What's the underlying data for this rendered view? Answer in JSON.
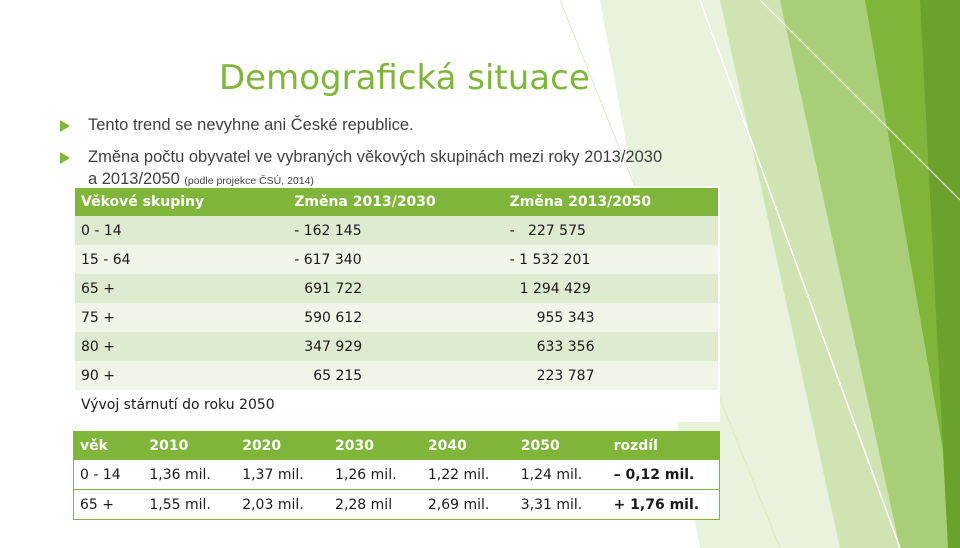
{
  "title": "Demografická situace",
  "bullets": [
    {
      "text": "Tento trend se nevyhne ani České republice."
    },
    {
      "line1": "Změna počtu obyvatel ve vybraných věkových skupinách mezi roky 2013/2030",
      "line2": "a 2013/2050",
      "note": "(podle projekce ČSÚ, 2014)"
    }
  ],
  "table1": {
    "headers": [
      "Věkové skupiny",
      "Změna 2013/2030",
      "Změna 2013/2050"
    ],
    "rows": [
      [
        "0 - 14",
        "- 162 145",
        "-   227 575"
      ],
      [
        "15 - 64",
        "- 617 340",
        "- 1 532 201"
      ],
      [
        "65 +",
        "691 722",
        "1 294 429"
      ],
      [
        "75 +",
        "590 612",
        "955 343"
      ],
      [
        "80 +",
        "347 929",
        "633 356"
      ],
      [
        "90 +",
        "65 215",
        "223 787"
      ]
    ],
    "footer": "Vývoj stárnutí do roku 2050"
  },
  "table2": {
    "headers": [
      "věk",
      "2010",
      "2020",
      "2030",
      "2040",
      "2050",
      "rozdíl"
    ],
    "rows": [
      [
        "0 - 14",
        "1,36 mil.",
        "1,37 mil.",
        "1,26 mil.",
        "1,22 mil.",
        "1,24 mil.",
        "– 0,12 mil."
      ],
      [
        "65 +",
        "1,55 mil.",
        "2,03 mil.",
        "2,28 mil",
        "2,69 mil.",
        "3,31 mil.",
        "+ 1,76 mil."
      ]
    ]
  },
  "colors": {
    "accent": "#7fb539",
    "text": "#3f3f3f"
  }
}
